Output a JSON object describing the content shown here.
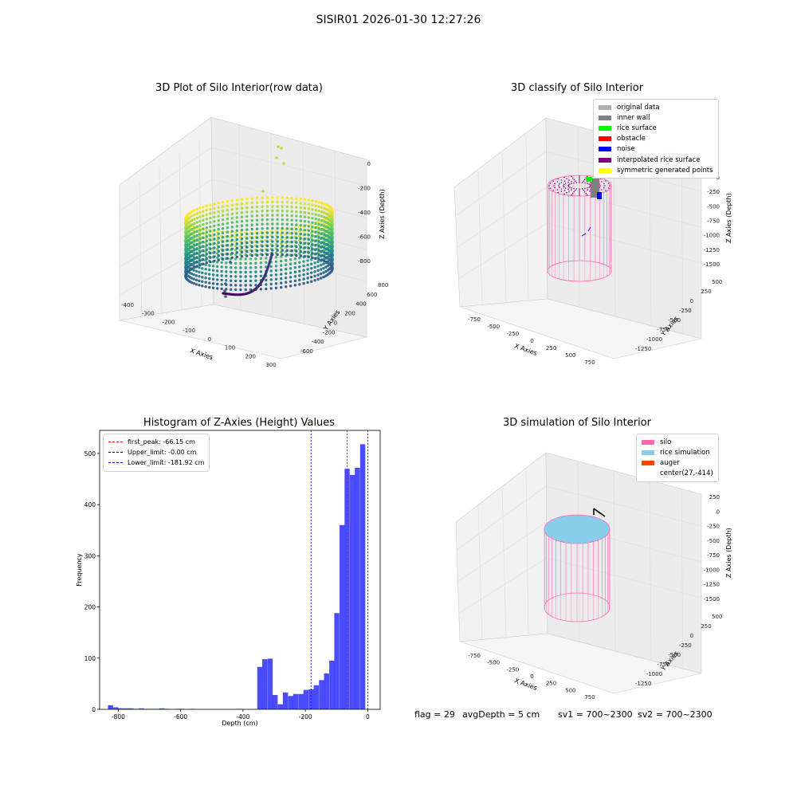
{
  "suptitle": "SISIR01 2026-01-30 12:27:26",
  "panel1": {
    "title": "3D Plot of Silo Interior(row data)",
    "xlabel": "X Axies",
    "ylabel": "Y Axies",
    "zlabel": "Z Axies (Depth)",
    "xticks": [
      "-400",
      "-300",
      "-200",
      "-100",
      "0",
      "100",
      "200",
      "300"
    ],
    "yticks": [
      "-600",
      "-400",
      "-200",
      "0",
      "200",
      "400",
      "600",
      "800"
    ],
    "zticks": [
      "0",
      "-200",
      "-400",
      "-600",
      "-800"
    ]
  },
  "panel2": {
    "title": "3D classify of Silo Interior",
    "xlabel": "X Axies",
    "ylabel": "Y Axies",
    "zlabel": "Z Axies (Depth)",
    "xticks": [
      "-750",
      "-500",
      "-250",
      "0",
      "250",
      "500",
      "750"
    ],
    "yticks": [
      "-1250",
      "-1000",
      "-750",
      "-500",
      "-250",
      "0",
      "250",
      "500"
    ],
    "zticks": [
      "0",
      "-250",
      "-500",
      "-750",
      "-1000",
      "-1250",
      "-1500"
    ],
    "legend": [
      {
        "label": "original data",
        "color": "#b0b0b0"
      },
      {
        "label": "inner wall",
        "color": "#808080"
      },
      {
        "label": "rice surface",
        "color": "#00ff00"
      },
      {
        "label": "obstacle",
        "color": "#ff0000"
      },
      {
        "label": "noise",
        "color": "#0000ff"
      },
      {
        "label": "interpolated rice surface",
        "color": "#800080"
      },
      {
        "label": "symmetric generated points",
        "color": "#ffff00"
      }
    ]
  },
  "panel4": {
    "title": "3D simulation of Silo Interior",
    "xlabel": "X Axies",
    "ylabel": "Y Axies",
    "zlabel": "Z Axies (Depth)",
    "xticks": [
      "-750",
      "-500",
      "-250",
      "0",
      "250",
      "500",
      "750"
    ],
    "yticks": [
      "-1250",
      "-1000",
      "-750",
      "-500",
      "-250",
      "0",
      "250",
      "500"
    ],
    "zticks": [
      "250",
      "0",
      "-250",
      "-500",
      "-750",
      "-1000",
      "-1250",
      "-1500"
    ],
    "legend": [
      {
        "label": "silo",
        "color": "#ff69b4"
      },
      {
        "label": "rice simulation",
        "color": "#87ceeb"
      },
      {
        "label": "auger",
        "color": "#ff4500"
      },
      {
        "label": "center(27,-414)",
        "color": ""
      }
    ]
  },
  "status": {
    "flag": "flag = 29",
    "avg": "avgDepth = 5 cm",
    "sv1": "sv1 = 700~2300",
    "sv2": "sv2 = 700~2300"
  },
  "chart_data": [
    {
      "type": "scatter",
      "title": "3D Plot of Silo Interior(row data)",
      "xlabel": "X Axies",
      "ylabel": "Y Axies",
      "zlabel": "Z Axies (Depth)",
      "xlim": [
        -450,
        300
      ],
      "ylim": [
        -650,
        850
      ],
      "zlim": [
        -900,
        50
      ]
    },
    {
      "type": "scatter",
      "title": "3D classify of Silo Interior",
      "xlabel": "X Axies",
      "ylabel": "Y Axies",
      "zlabel": "Z Axies (Depth)"
    },
    {
      "type": "bar",
      "title": "Histogram of Z-Axies (Height) Values",
      "xlabel": "Depth (cm)",
      "ylabel": "Frequency",
      "xlim": [
        -860,
        40
      ],
      "ylim": [
        0,
        545
      ],
      "xticks": [
        -800,
        -600,
        -400,
        -200,
        0
      ],
      "yticks": [
        0,
        100,
        200,
        300,
        400,
        500
      ],
      "bin_width": 16.5,
      "bins": [
        {
          "x": -825,
          "y": 8
        },
        {
          "x": -808,
          "y": 4
        },
        {
          "x": -792,
          "y": 2
        },
        {
          "x": -775,
          "y": 2
        },
        {
          "x": -759,
          "y": 2
        },
        {
          "x": -742,
          "y": 1
        },
        {
          "x": -726,
          "y": 2
        },
        {
          "x": -709,
          "y": 1
        },
        {
          "x": -693,
          "y": 1
        },
        {
          "x": -676,
          "y": 1
        },
        {
          "x": -660,
          "y": 2
        },
        {
          "x": -643,
          "y": 1
        },
        {
          "x": -610,
          "y": 1
        },
        {
          "x": -594,
          "y": 1
        },
        {
          "x": -561,
          "y": 1
        },
        {
          "x": -412,
          "y": 1
        },
        {
          "x": -346,
          "y": 83
        },
        {
          "x": -330,
          "y": 98
        },
        {
          "x": -313,
          "y": 99
        },
        {
          "x": -297,
          "y": 28
        },
        {
          "x": -280,
          "y": 10
        },
        {
          "x": -264,
          "y": 33
        },
        {
          "x": -247,
          "y": 26
        },
        {
          "x": -231,
          "y": 30
        },
        {
          "x": -214,
          "y": 30
        },
        {
          "x": -198,
          "y": 38
        },
        {
          "x": -181,
          "y": 39
        },
        {
          "x": -165,
          "y": 47
        },
        {
          "x": -148,
          "y": 57
        },
        {
          "x": -132,
          "y": 70
        },
        {
          "x": -115,
          "y": 95
        },
        {
          "x": -99,
          "y": 188
        },
        {
          "x": -82,
          "y": 360
        },
        {
          "x": -66,
          "y": 470
        },
        {
          "x": -49,
          "y": 458
        },
        {
          "x": -33,
          "y": 472
        },
        {
          "x": -16,
          "y": 518
        }
      ],
      "vlines": [
        {
          "label": "first_peak: -66.15 cm",
          "x": -66.15,
          "color": "#ff0000"
        },
        {
          "label": "Upper_limit: -0.00 cm",
          "x": 0,
          "color": "#000080"
        },
        {
          "label": "Lower_limit: -181.92 cm",
          "x": -181.92,
          "color": "#0000ff"
        }
      ]
    },
    {
      "type": "scatter",
      "title": "3D simulation of Silo Interior",
      "xlabel": "X Axies",
      "ylabel": "Y Axies",
      "zlabel": "Z Axies (Depth)"
    }
  ]
}
